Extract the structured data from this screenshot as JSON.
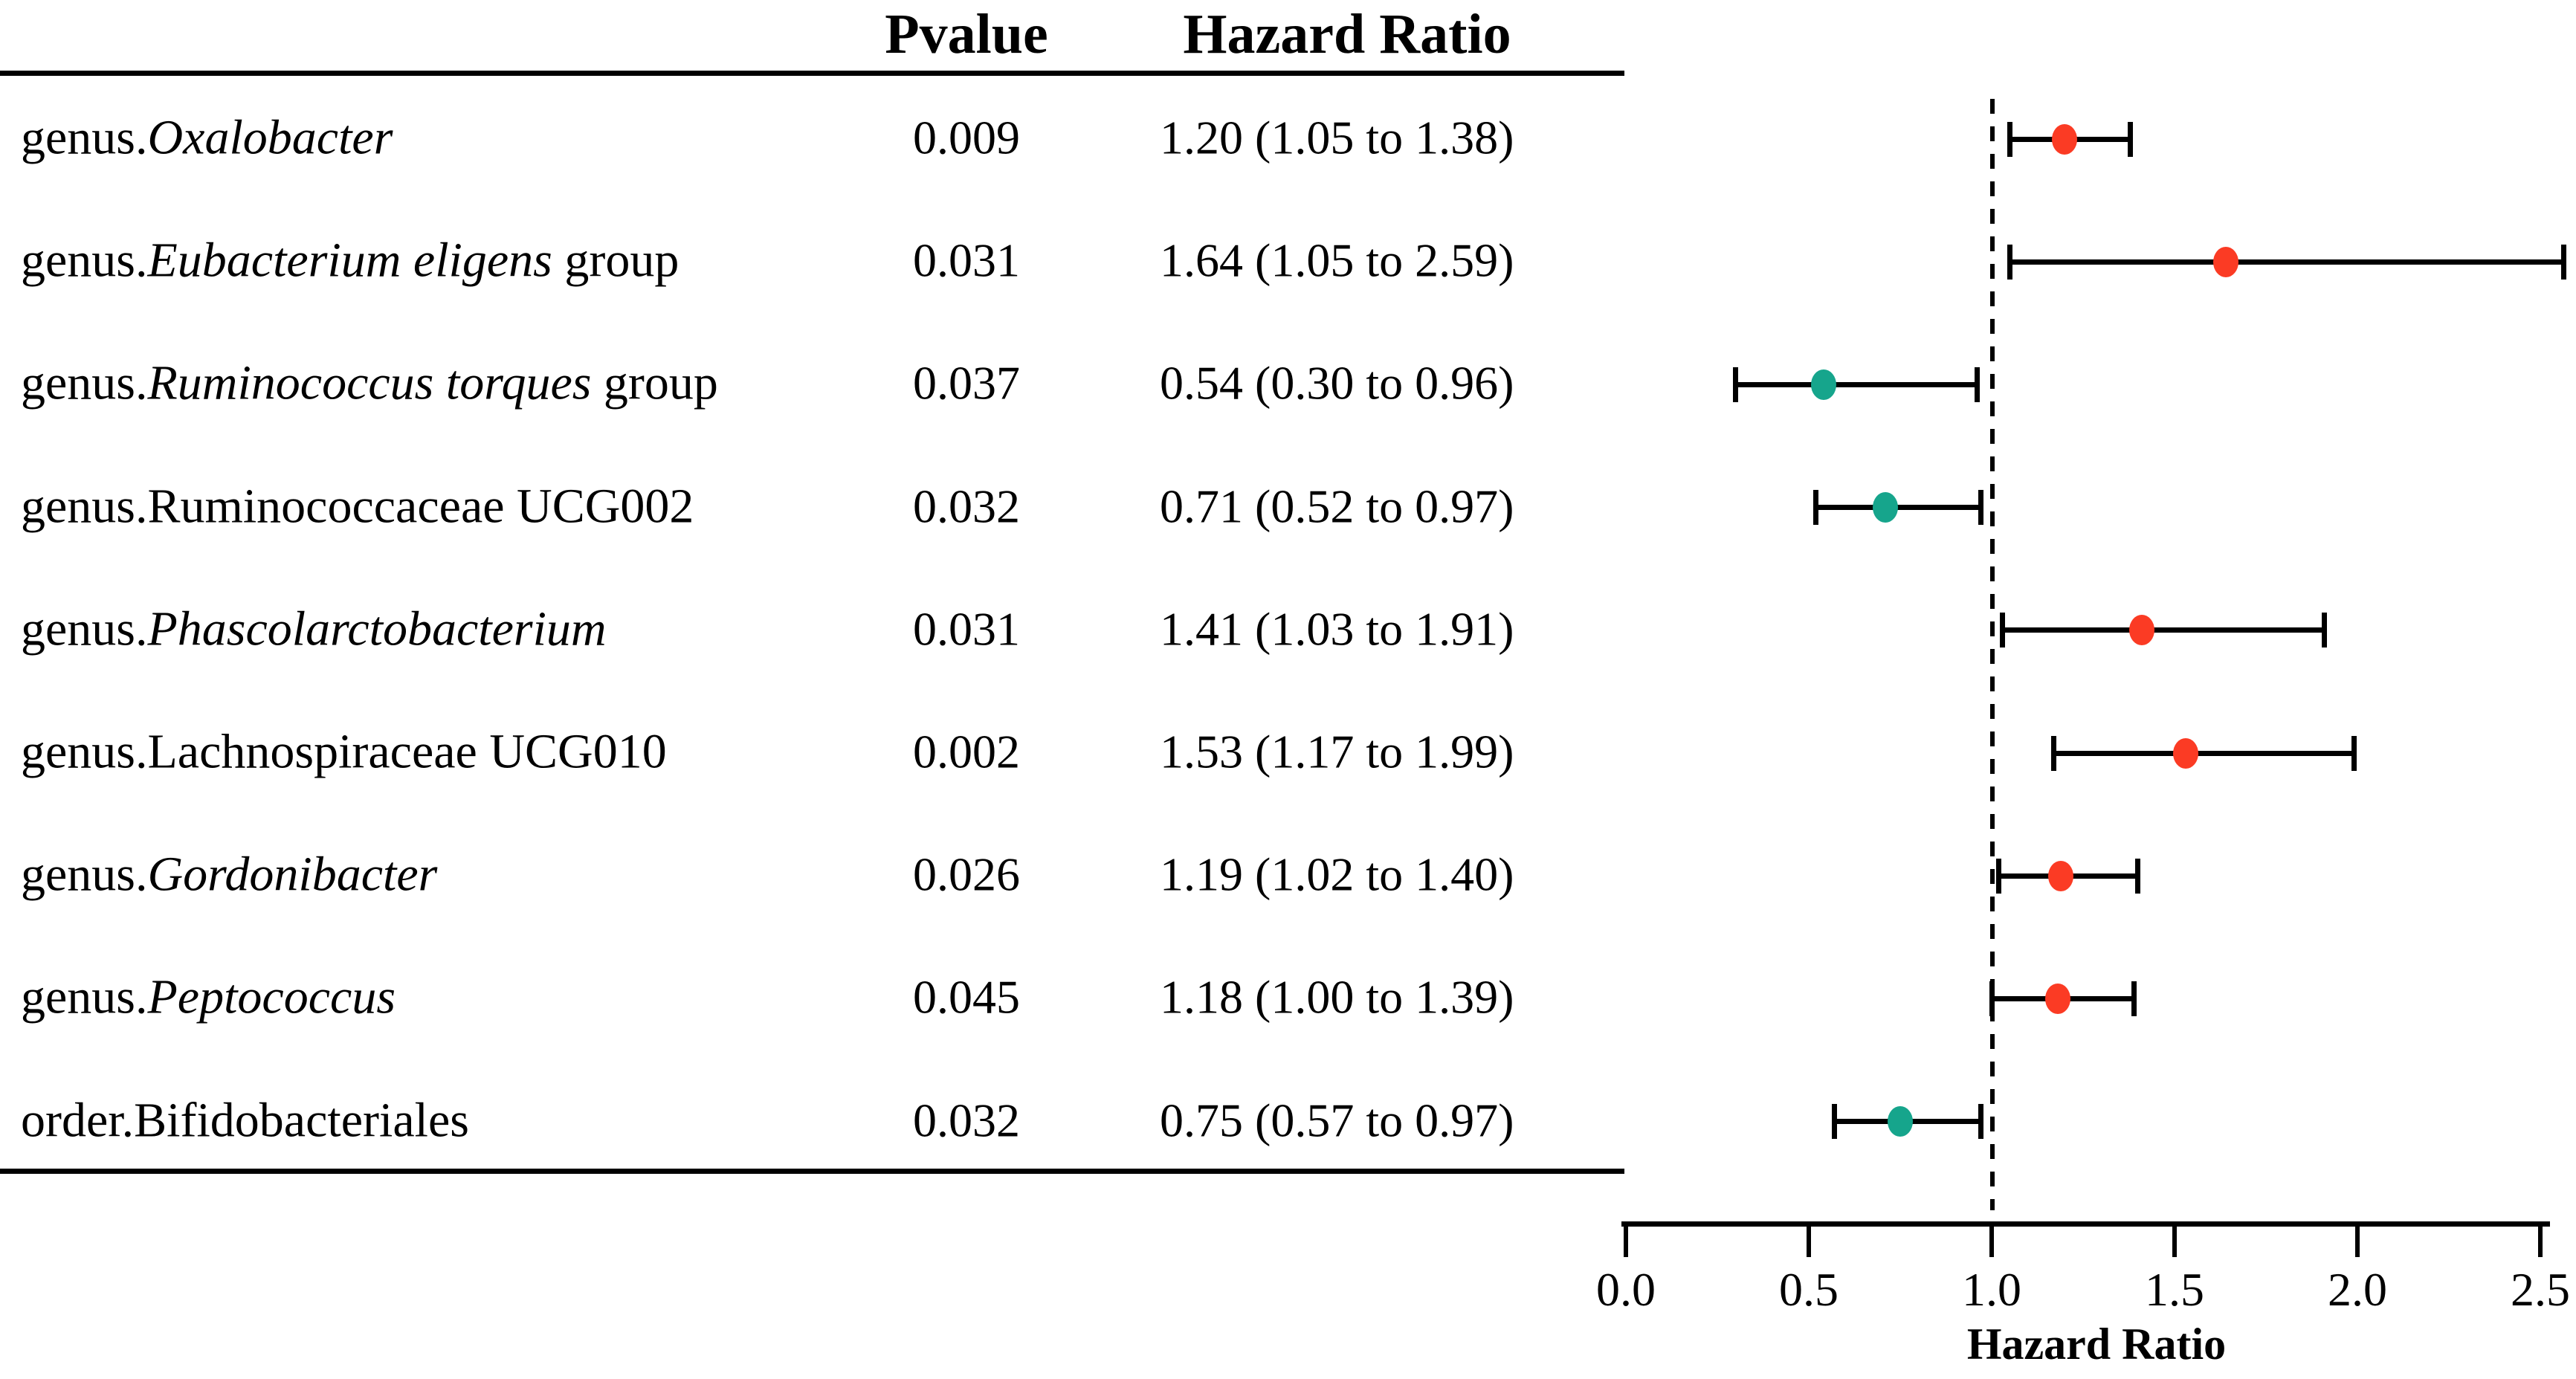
{
  "table_headers": {
    "pvalue": "Pvalue",
    "hazard_ratio": "Hazard Ratio"
  },
  "chart_data": {
    "type": "scatter",
    "subtype": "forest-plot",
    "title": "",
    "xlabel": "Hazard Ratio",
    "ylabel": "",
    "xlim": [
      0.0,
      2.5
    ],
    "x_ticks": [
      0.0,
      0.5,
      1.0,
      1.5,
      2.0,
      2.5
    ],
    "x_tick_labels": [
      "0.0",
      "0.5",
      "1.0",
      "1.5",
      "2.0",
      "2.5"
    ],
    "reference_line_x": 1.0,
    "reference_line_style": "dashed",
    "grid": "off",
    "legend": "none",
    "point_colors": {
      "hr_above_1": "#fb3b24",
      "hr_below_1": "#16a58c"
    },
    "rows": [
      {
        "label": "genus.Oxalobacter",
        "label_parts": [
          {
            "t": "genus.",
            "i": 0
          },
          {
            "t": "Oxalobacter",
            "i": 1
          }
        ],
        "pvalue": "0.009",
        "hr": 1.2,
        "ci_low": 1.05,
        "ci_high": 1.38,
        "hr_text": "1.20 (1.05 to 1.38)"
      },
      {
        "label": "genus.Eubacterium eligens group",
        "label_parts": [
          {
            "t": "genus.",
            "i": 0
          },
          {
            "t": "Eubacterium eligens",
            "i": 1
          },
          {
            "t": " group",
            "i": 0
          }
        ],
        "pvalue": "0.031",
        "hr": 1.64,
        "ci_low": 1.05,
        "ci_high": 2.59,
        "hr_text": "1.64 (1.05 to 2.59)"
      },
      {
        "label": "genus.Ruminococcus torques group",
        "label_parts": [
          {
            "t": "genus.",
            "i": 0
          },
          {
            "t": "Ruminococcus torques",
            "i": 1
          },
          {
            "t": " group",
            "i": 0
          }
        ],
        "pvalue": "0.037",
        "hr": 0.54,
        "ci_low": 0.3,
        "ci_high": 0.96,
        "hr_text": "0.54 (0.30 to 0.96)"
      },
      {
        "label": "genus.Ruminococcaceae UCG002",
        "label_parts": [
          {
            "t": "genus.Ruminococcaceae UCG002",
            "i": 0
          }
        ],
        "pvalue": "0.032",
        "hr": 0.71,
        "ci_low": 0.52,
        "ci_high": 0.97,
        "hr_text": "0.71 (0.52 to 0.97)"
      },
      {
        "label": "genus.Phascolarctobacterium",
        "label_parts": [
          {
            "t": "genus.",
            "i": 0
          },
          {
            "t": "Phascolarctobacterium",
            "i": 1
          }
        ],
        "pvalue": "0.031",
        "hr": 1.41,
        "ci_low": 1.03,
        "ci_high": 1.91,
        "hr_text": "1.41 (1.03 to 1.91)"
      },
      {
        "label": "genus.Lachnospiraceae UCG010",
        "label_parts": [
          {
            "t": "genus.Lachnospiraceae UCG010",
            "i": 0
          }
        ],
        "pvalue": "0.002",
        "hr": 1.53,
        "ci_low": 1.17,
        "ci_high": 1.99,
        "hr_text": "1.53 (1.17 to 1.99)"
      },
      {
        "label": "genus.Gordonibacter",
        "label_parts": [
          {
            "t": "genus.",
            "i": 0
          },
          {
            "t": "Gordonibacter",
            "i": 1
          }
        ],
        "pvalue": "0.026",
        "hr": 1.19,
        "ci_low": 1.02,
        "ci_high": 1.4,
        "hr_text": "1.19 (1.02 to 1.40)"
      },
      {
        "label": "genus.Peptococcus",
        "label_parts": [
          {
            "t": "genus.",
            "i": 0
          },
          {
            "t": "Peptococcus",
            "i": 1
          }
        ],
        "pvalue": "0.045",
        "hr": 1.18,
        "ci_low": 1.0,
        "ci_high": 1.39,
        "hr_text": "1.18 (1.00 to 1.39)"
      },
      {
        "label": "order.Bifidobacteriales",
        "label_parts": [
          {
            "t": "order.Bifidobacteriales",
            "i": 0
          }
        ],
        "pvalue": "0.032",
        "hr": 0.75,
        "ci_low": 0.57,
        "ci_high": 0.97,
        "hr_text": "0.75 (0.57 to 0.97)"
      }
    ]
  }
}
